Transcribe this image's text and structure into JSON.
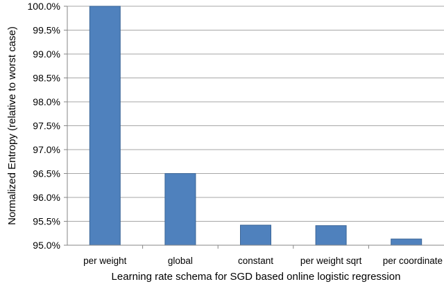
{
  "chart_data": {
    "type": "bar",
    "title": "",
    "xlabel": "Learning rate schema for SGD based online logistic regression",
    "ylabel": "Normalized Entropy (relative to worst case)",
    "categories": [
      "per weight",
      "global",
      "constant",
      "per weight sqrt",
      "per coordinate"
    ],
    "values": [
      100.0,
      96.5,
      95.42,
      95.41,
      95.13
    ],
    "ylim": [
      95.0,
      100.0
    ],
    "yticks": [
      95.0,
      95.5,
      96.0,
      96.5,
      97.0,
      97.5,
      98.0,
      98.5,
      99.0,
      99.5,
      100.0
    ],
    "ytick_labels": [
      "95.0%",
      "95.5%",
      "96.0%",
      "96.5%",
      "97.0%",
      "97.5%",
      "98.0%",
      "98.5%",
      "99.0%",
      "99.5%",
      "100.0%"
    ],
    "grid": true,
    "legend": "none",
    "colors": {
      "bar_fill": "#4f81bd",
      "bar_stroke": "#3a6496",
      "grid": "#a6a6a6",
      "axis": "#868686"
    }
  }
}
